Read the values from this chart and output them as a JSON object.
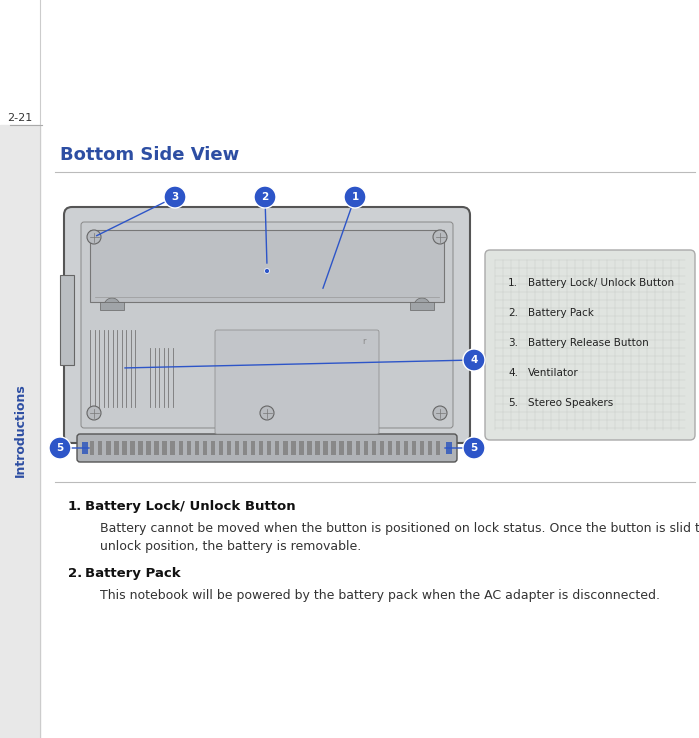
{
  "page_num": "2-21",
  "sidebar_text": "Introductions",
  "sidebar_color": "#2d4ea3",
  "title": "Bottom Side View",
  "title_color": "#2d4ea3",
  "separator_color": "#bbbbbb",
  "bg_color": "#ffffff",
  "callout_blue": "#2d55c8",
  "legend_bg": "#e4e8e4",
  "legend_border": "#aaaaaa",
  "legend_items": [
    "Battery Lock/ Unlock Button",
    "Battery Pack",
    "Battery Release Button",
    "Ventilator",
    "Stereo Speakers"
  ],
  "item1_bold": "Battery Lock/ Unlock Button",
  "item1_line1": "Battery cannot be moved when the button is positioned on lock status. Once the button is slid to",
  "item1_line2": "unlock position, the battery is removable.",
  "item2_bold": "Battery Pack",
  "item2_text": "This notebook will be powered by the battery pack when the AC adapter is disconnected."
}
